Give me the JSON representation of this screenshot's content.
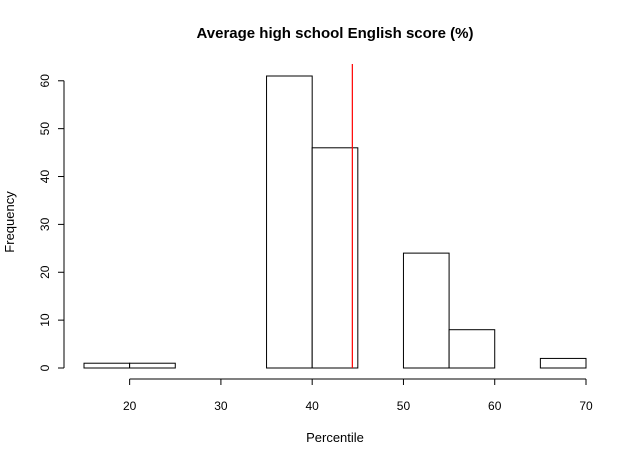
{
  "chart_data": {
    "type": "bar",
    "subtype": "histogram",
    "title": "Average high school English score (%)",
    "xlabel": "Percentile",
    "ylabel": "Frequency",
    "xlim": [
      15,
      70
    ],
    "ylim": [
      0,
      61
    ],
    "xticks": [
      20,
      30,
      40,
      50,
      60,
      70
    ],
    "yticks": [
      0,
      10,
      20,
      30,
      40,
      50,
      60
    ],
    "bins": [
      {
        "start": 15,
        "end": 20,
        "count": 1
      },
      {
        "start": 20,
        "end": 25,
        "count": 1
      },
      {
        "start": 25,
        "end": 30,
        "count": 0
      },
      {
        "start": 30,
        "end": 35,
        "count": 0
      },
      {
        "start": 35,
        "end": 40,
        "count": 61
      },
      {
        "start": 40,
        "end": 45,
        "count": 46
      },
      {
        "start": 45,
        "end": 50,
        "count": 0
      },
      {
        "start": 50,
        "end": 55,
        "count": 24
      },
      {
        "start": 55,
        "end": 60,
        "count": 8
      },
      {
        "start": 60,
        "end": 65,
        "count": 0
      },
      {
        "start": 65,
        "end": 70,
        "count": 2
      }
    ],
    "reference_line": {
      "x": 44.4,
      "color": "#ff0000"
    },
    "bar_fill": "#ffffff",
    "bar_stroke": "#000000",
    "grid": false,
    "legend": "none"
  }
}
